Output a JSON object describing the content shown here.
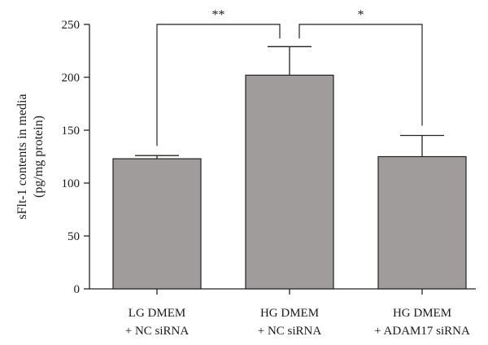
{
  "chart_data": {
    "type": "bar",
    "title": "",
    "ylabel_lines": [
      "sFlt-1 contents in media",
      "(pg/mg protein)"
    ],
    "xlabel": "",
    "ylim": [
      0,
      250
    ],
    "yticks": [
      0,
      50,
      100,
      150,
      200,
      250
    ],
    "categories": [
      [
        "LG DMEM",
        "+ NC siRNA"
      ],
      [
        "HG DMEM",
        "+ NC siRNA"
      ],
      [
        "HG DMEM",
        "+ ADAM17 siRNA"
      ]
    ],
    "values": [
      123,
      202,
      125
    ],
    "error_upper": [
      126,
      229,
      145
    ],
    "bar_color": "#a09c9c",
    "grid": false,
    "significance": [
      {
        "from": 0,
        "to": 1,
        "label": "**"
      },
      {
        "from": 1,
        "to": 2,
        "label": "*"
      }
    ]
  }
}
